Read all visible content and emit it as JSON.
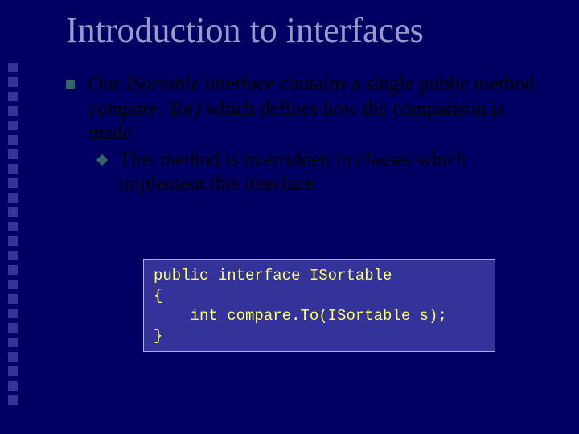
{
  "title": "Introduction to interfaces",
  "bullet1": {
    "pre": "Our ",
    "italic1": "ISortable",
    "mid1": " interface contains a single public method ",
    "italic2": "compare. To()",
    "post": " which defines how the comparison is made"
  },
  "bullet2": "This method is overridden in classes which implement this interface",
  "code": {
    "line1": "public interface ISortable",
    "line2": "{",
    "line3": "    int compare.To(ISortable s);",
    "line4": "}"
  },
  "styling": {
    "background_color": "#000063",
    "title_color": "#9999cc",
    "title_fontsize": 44,
    "body_fontsize": 25,
    "body_color": "#000000",
    "side_square_color": "#333399",
    "bullet_marker_color": "#336666",
    "code_background": "#333399",
    "code_border": "#b0b0e0",
    "code_text_color": "#ffff66",
    "code_fontsize": 19,
    "code_font_family": "Courier New",
    "body_font_family": "Times New Roman",
    "side_square_count": 24
  }
}
